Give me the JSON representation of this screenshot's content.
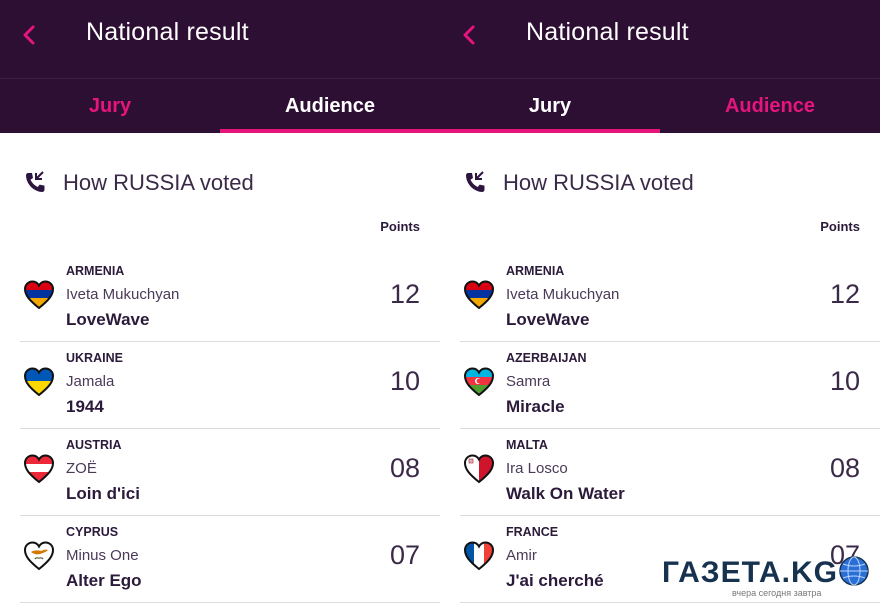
{
  "colors": {
    "header_bg": "#2d0f33",
    "accent": "#e6157c",
    "text": "#2b1a3a"
  },
  "panels": [
    {
      "title": "National result",
      "back_icon": "chevron-left-icon",
      "tabs": [
        {
          "label": "Jury",
          "active": false
        },
        {
          "label": "Audience",
          "active": true
        }
      ],
      "heading": "How RUSSIA voted",
      "points_label": "Points",
      "rows": [
        {
          "country": "ARMENIA",
          "artist": "Iveta Mukuchyan",
          "song": "LoveWave",
          "points": "12",
          "flag_icon": "armenia-heart-flag-icon"
        },
        {
          "country": "UKRAINE",
          "artist": "Jamala",
          "song": "1944",
          "points": "10",
          "flag_icon": "ukraine-heart-flag-icon"
        },
        {
          "country": "AUSTRIA",
          "artist": "ZOË",
          "song": "Loin d'ici",
          "points": "08",
          "flag_icon": "austria-heart-flag-icon"
        },
        {
          "country": "CYPRUS",
          "artist": "Minus One",
          "song": "Alter Ego",
          "points": "07",
          "flag_icon": "cyprus-heart-flag-icon"
        }
      ]
    },
    {
      "title": "National result",
      "back_icon": "chevron-left-icon",
      "tabs": [
        {
          "label": "Jury",
          "active": true
        },
        {
          "label": "Audience",
          "active": false
        }
      ],
      "heading": "How RUSSIA voted",
      "points_label": "Points",
      "rows": [
        {
          "country": "ARMENIA",
          "artist": "Iveta Mukuchyan",
          "song": "LoveWave",
          "points": "12",
          "flag_icon": "armenia-heart-flag-icon"
        },
        {
          "country": "AZERBAIJAN",
          "artist": "Samra",
          "song": "Miracle",
          "points": "10",
          "flag_icon": "azerbaijan-heart-flag-icon"
        },
        {
          "country": "MALTA",
          "artist": "Ira Losco",
          "song": "Walk On Water",
          "points": "08",
          "flag_icon": "malta-heart-flag-icon"
        },
        {
          "country": "FRANCE",
          "artist": "Amir",
          "song": "J'ai cherché",
          "points": "07",
          "flag_icon": "france-heart-flag-icon"
        }
      ]
    }
  ],
  "watermark": {
    "text": "ГАЗЕТА.KG",
    "tagline": "вчера сегодня завтра"
  }
}
